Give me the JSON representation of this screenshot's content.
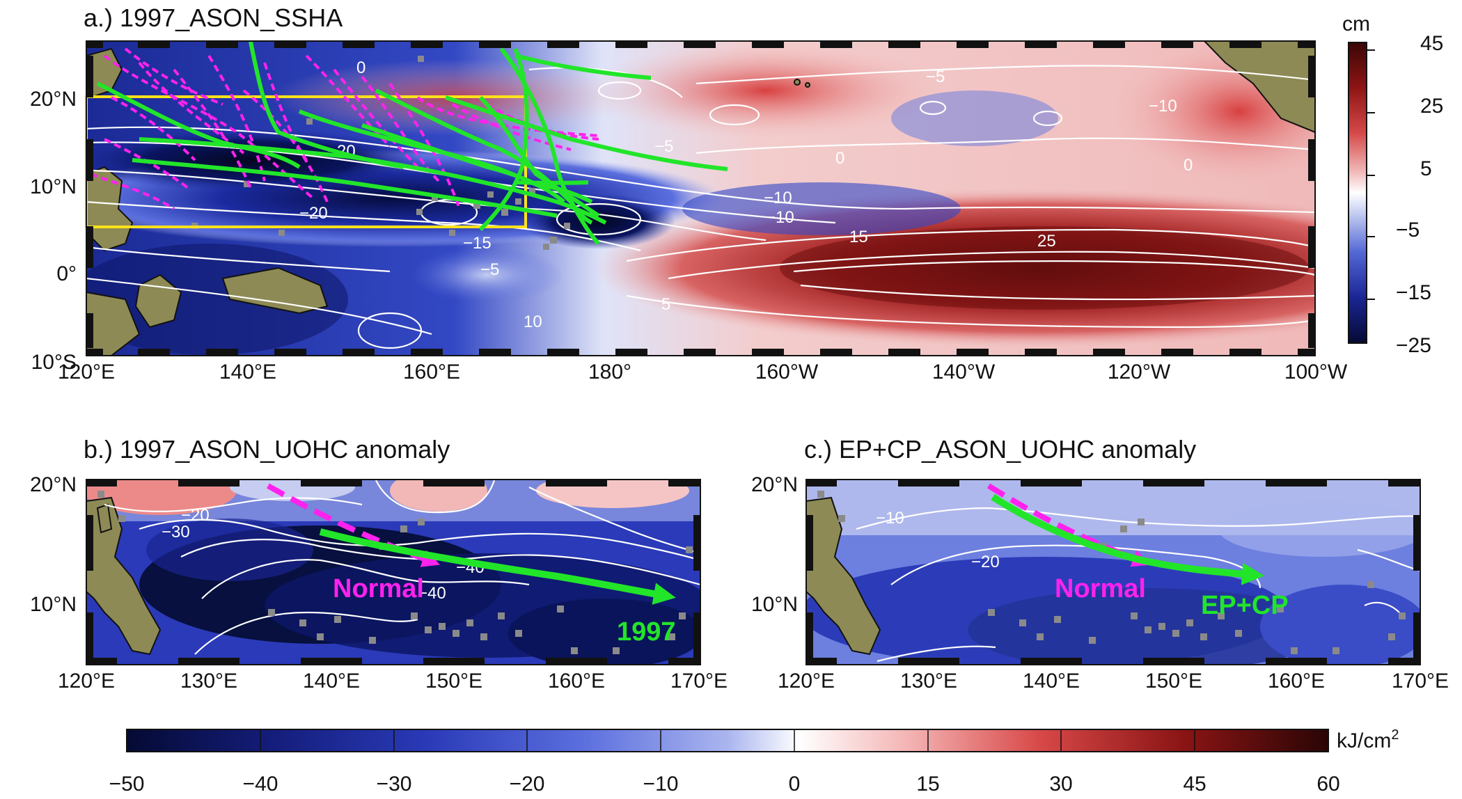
{
  "panel_a": {
    "title": "a.) 1997_ASON_SSHA",
    "lon_labels": [
      "120°E",
      "140°E",
      "160°E",
      "180°",
      "160°W",
      "140°W",
      "120°W",
      "100°W"
    ],
    "lat_labels": [
      "20°N",
      "10°N",
      "0°",
      "10°S"
    ],
    "colorbar": {
      "unit": "cm",
      "labels": [
        "45",
        "25",
        "5",
        "−5",
        "−15",
        "−25"
      ]
    },
    "contour_labels": [
      "0",
      "−20",
      "−5",
      "0",
      "−10",
      "−10",
      "−20",
      "−15",
      "−5",
      "15",
      "25",
      "−5",
      "−10",
      "5",
      "10",
      "0"
    ]
  },
  "panel_b": {
    "title": "b.) 1997_ASON_UOHC anomaly",
    "lon_labels": [
      "120°E",
      "130°E",
      "140°E",
      "150°E",
      "160°E",
      "170°E"
    ],
    "lat_labels": [
      "20°N",
      "10°N"
    ],
    "contour_labels": [
      "−20",
      "−30",
      "−40",
      "−40"
    ],
    "track_labels": {
      "normal": "Normal",
      "year": "1997"
    }
  },
  "panel_c": {
    "title": "c.) EP+CP_ASON_UOHC anomaly",
    "lon_labels": [
      "120°E",
      "130°E",
      "140°E",
      "150°E",
      "160°E",
      "170°E"
    ],
    "lat_labels": [
      "20°N",
      "10°N"
    ],
    "contour_labels": [
      "−10",
      "−20"
    ],
    "track_labels": {
      "normal": "Normal",
      "composite": "EP+CP"
    }
  },
  "colorbar_bottom": {
    "unit": "kJ/cm",
    "unit_sup": "2",
    "labels": [
      "−50",
      "−40",
      "−30",
      "−20",
      "−10",
      "0",
      "15",
      "30",
      "45",
      "60"
    ]
  },
  "colors": {
    "track_green": "#22e52a",
    "track_magenta": "#ff22ee",
    "box_yellow": "#ffe21a",
    "land": "#8d8a55"
  }
}
